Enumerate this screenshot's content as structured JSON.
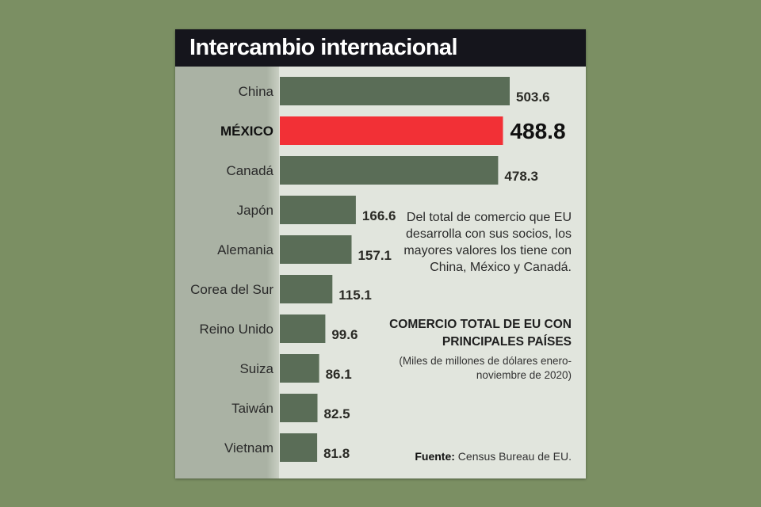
{
  "colors": {
    "background": "#7b8f63",
    "card": "#e1e5dd",
    "label_column": "#aab2a4",
    "title_bar": "#15151c",
    "bar": "#5a6d57",
    "highlight_bar": "#f23036"
  },
  "header": {
    "title": "Intercambio internacional"
  },
  "note": "Del total de comercio que EU desarrolla con sus socios, los mayores valores los tiene con China, México y Canadá.",
  "source": {
    "label": "Fuente:",
    "text": " Census Bureau de EU."
  },
  "chart_data": {
    "type": "bar",
    "orientation": "horizontal",
    "title": "COMERCIO TOTAL DE EU CON PRINCIPALES PAÍSES",
    "subtitle": "(Miles de millones de dólares enero- noviembre de 2020)",
    "categories": [
      "China",
      "MÉXICO",
      "Canadá",
      "Japón",
      "Alemania",
      "Corea del Sur",
      "Reino Unido",
      "Suiza",
      "Taiwán",
      "Vietnam"
    ],
    "values": [
      503.6,
      488.8,
      478.3,
      166.6,
      157.1,
      115.1,
      99.6,
      86.1,
      82.5,
      81.8
    ],
    "value_labels": [
      "503.6",
      "488.8",
      "478.3",
      "166.6",
      "157.1",
      "115.1",
      "99.6",
      "86.1",
      "82.5",
      "81.8"
    ],
    "highlight": "MÉXICO",
    "xlim": [
      0,
      503.6
    ],
    "grid": false,
    "legend": false
  }
}
